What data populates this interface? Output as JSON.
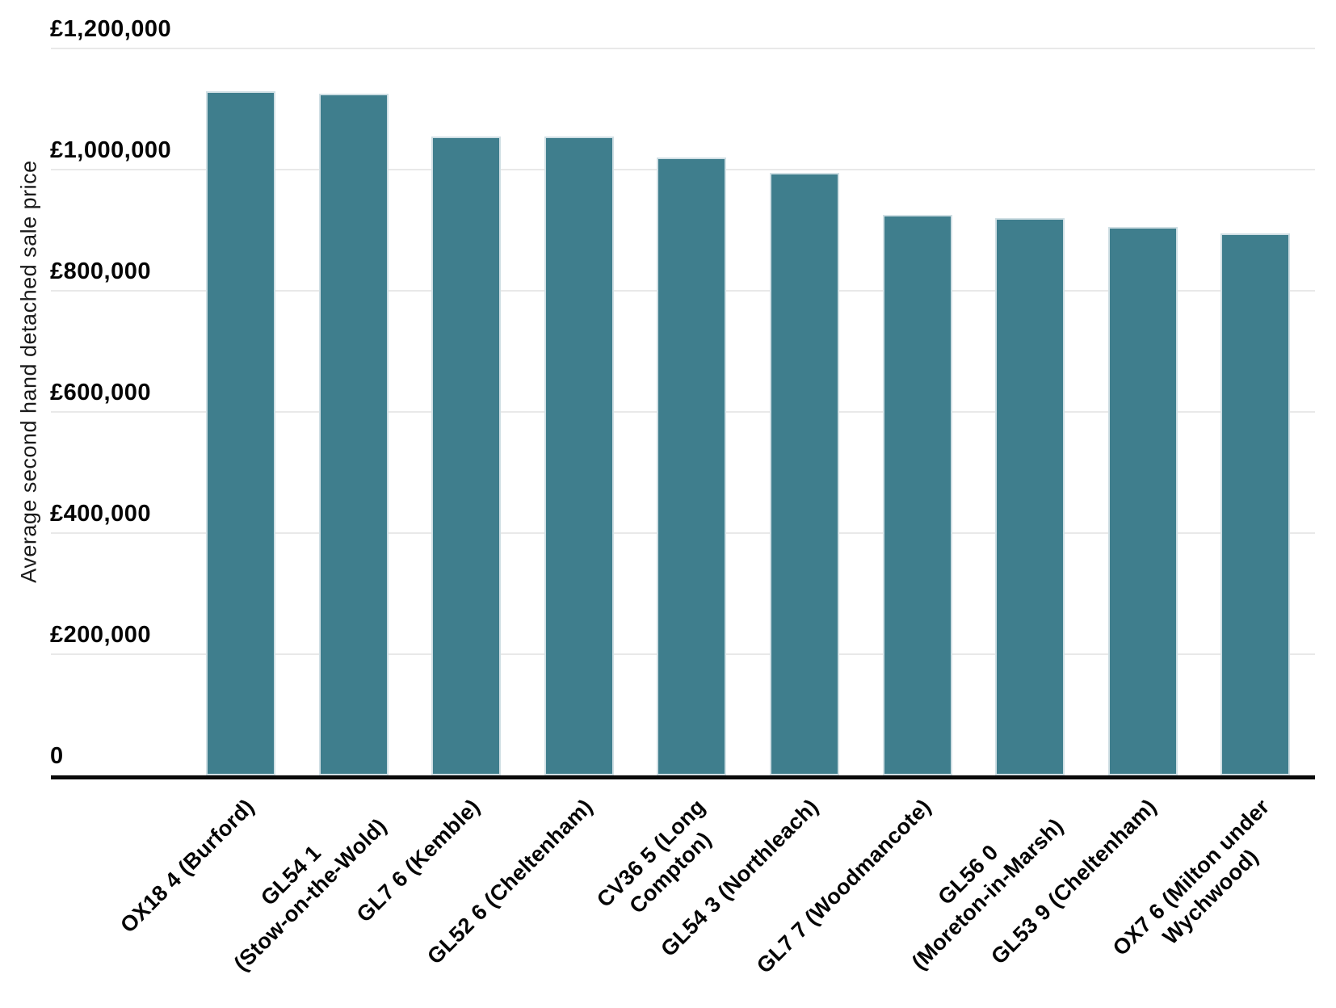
{
  "chart_data": {
    "type": "bar",
    "title": "",
    "xlabel": "",
    "ylabel": "Average second hand detached sale price",
    "ylim": [
      0,
      1200000
    ],
    "grid": "horizontal",
    "legend": "none",
    "bar_color": "#3F7E8D",
    "bar_stroke": "#D0DFE4",
    "categories": [
      "OX18 4 (Burford)",
      "GL54 1 (Stow-on-the-Wold)",
      "GL7 6 (Kemble)",
      "GL52 6 (Cheltenham)",
      "CV36 5 (Long Compton)",
      "GL54 3 (Northleach)",
      "GL7 7 (Woodmancote)",
      "GL56 0 (Moreton-in-Marsh)",
      "GL53 9 (Cheltenham)",
      "OX7 6 (Milton under Wychwood)"
    ],
    "category_lines": [
      [
        "OX18 4 (Burford)"
      ],
      [
        "GL54 1",
        "(Stow-on-the-Wold)"
      ],
      [
        "GL7 6 (Kemble)"
      ],
      [
        "GL52 6 (Cheltenham)"
      ],
      [
        "CV36 5 (Long",
        "Compton)"
      ],
      [
        "GL54 3 (Northleach)"
      ],
      [
        "GL7 7 (Woodmancote)"
      ],
      [
        "GL56 0",
        "(Moreton-in-Marsh)"
      ],
      [
        "GL53 9 (Cheltenham)"
      ],
      [
        "OX7 6 (Milton under",
        "Wychwood)"
      ]
    ],
    "values": [
      1130000,
      1125000,
      1055000,
      1055000,
      1020000,
      995000,
      925000,
      920000,
      905000,
      895000
    ],
    "y_ticks": [
      {
        "value": 0,
        "label": "0"
      },
      {
        "value": 200000,
        "label": "£200,000"
      },
      {
        "value": 400000,
        "label": "£400,000"
      },
      {
        "value": 600000,
        "label": "£600,000"
      },
      {
        "value": 800000,
        "label": "£800,000"
      },
      {
        "value": 1000000,
        "label": "£1,000,000"
      },
      {
        "value": 1200000,
        "label": "£1,200,000"
      }
    ]
  }
}
